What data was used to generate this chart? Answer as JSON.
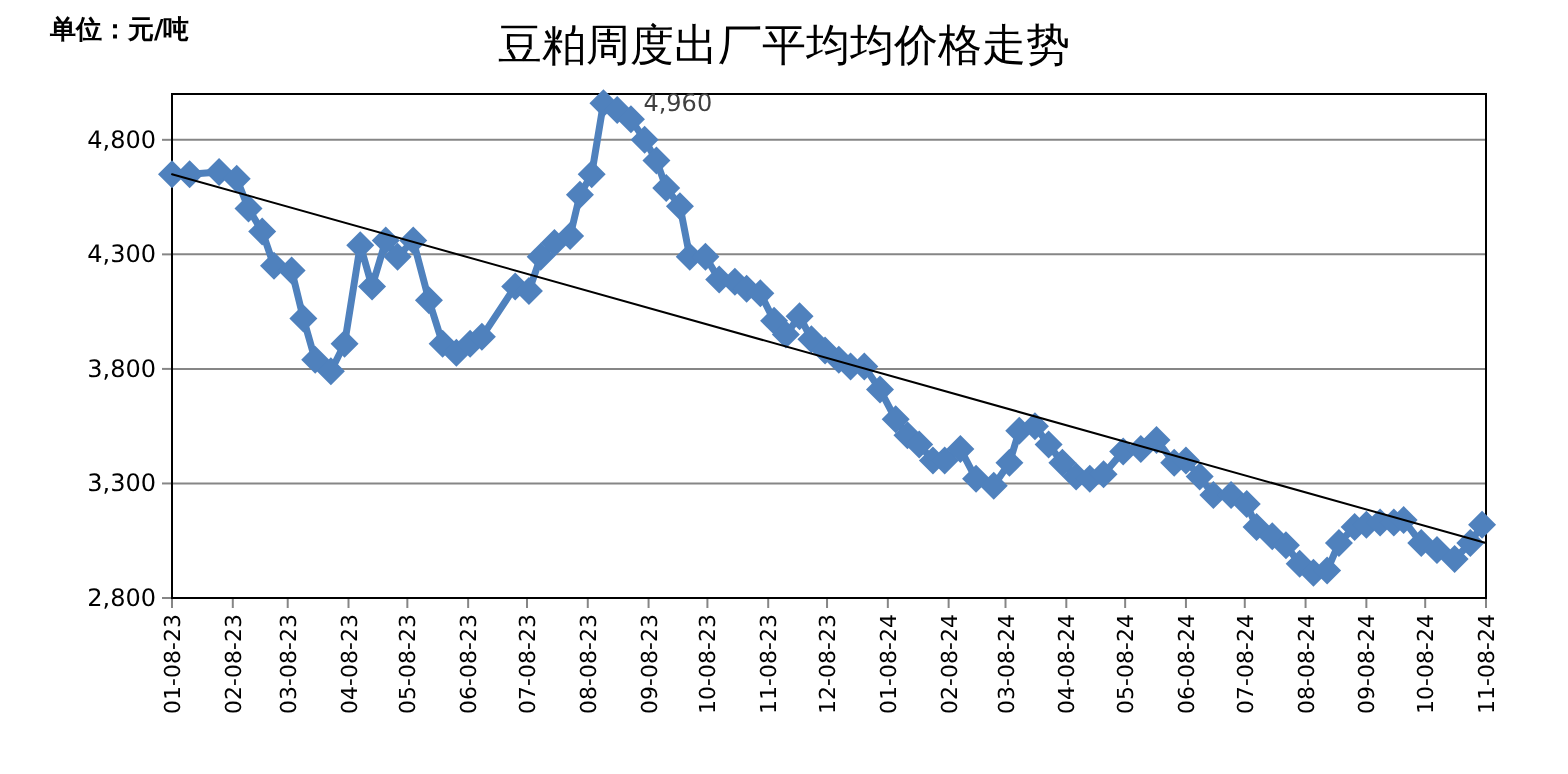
{
  "chart_data": {
    "type": "line",
    "title": "豆粕周度出厂平均均价格走势",
    "annotations": [
      "单位：元/吨",
      {
        "text": "4,960",
        "x": "2023-08-16",
        "y": 4960
      }
    ],
    "x": [
      "2023-01-08",
      "2023-01-17",
      "2023-02-01",
      "2023-02-10",
      "2023-02-16",
      "2023-02-23",
      "2023-03-01",
      "2023-03-10",
      "2023-03-16",
      "2023-03-22",
      "2023-03-30",
      "2023-04-06",
      "2023-04-14",
      "2023-04-20",
      "2023-04-27",
      "2023-05-03",
      "2023-05-11",
      "2023-05-19",
      "2023-05-26",
      "2023-06-02",
      "2023-06-09",
      "2023-06-15",
      "2023-07-02",
      "2023-07-09",
      "2023-07-15",
      "2023-07-22",
      "2023-07-30",
      "2023-08-04",
      "2023-08-10",
      "2023-08-16",
      "2023-08-23",
      "2023-08-30",
      "2023-09-06",
      "2023-09-12",
      "2023-09-17",
      "2023-09-24",
      "2023-09-29",
      "2023-10-07",
      "2023-10-14",
      "2023-10-22",
      "2023-10-28",
      "2023-11-04",
      "2023-11-11",
      "2023-11-17",
      "2023-11-24",
      "2023-11-30",
      "2023-12-07",
      "2023-12-14",
      "2023-12-20",
      "2023-12-27",
      "2024-01-04",
      "2024-01-12",
      "2024-01-18",
      "2024-01-24",
      "2024-01-31",
      "2024-02-06",
      "2024-02-14",
      "2024-02-22",
      "2024-03-02",
      "2024-03-10",
      "2024-03-15",
      "2024-03-23",
      "2024-03-30",
      "2024-04-06",
      "2024-04-13",
      "2024-04-20",
      "2024-04-27",
      "2024-05-07",
      "2024-05-16",
      "2024-05-24",
      "2024-06-02",
      "2024-06-08",
      "2024-06-15",
      "2024-06-22",
      "2024-07-01",
      "2024-07-09",
      "2024-07-14",
      "2024-07-22",
      "2024-07-29",
      "2024-08-05",
      "2024-08-12",
      "2024-08-19",
      "2024-08-25",
      "2024-09-02",
      "2024-09-08",
      "2024-09-15",
      "2024-09-22",
      "2024-09-27",
      "2024-10-06",
      "2024-10-14",
      "2024-10-23",
      "2024-10-31",
      "2024-11-06"
    ],
    "series": [
      {
        "color": "#4f81bd",
        "marker": "diamond",
        "values": [
          4650,
          4650,
          4660,
          4630,
          4500,
          4400,
          4250,
          4230,
          4020,
          3840,
          3790,
          3910,
          4340,
          4160,
          4360,
          4290,
          4360,
          4100,
          3910,
          3870,
          3910,
          3940,
          4160,
          4140,
          4290,
          4350,
          4380,
          4560,
          4650,
          4960,
          4930,
          4890,
          4800,
          4710,
          4590,
          4510,
          4290,
          4290,
          4190,
          4180,
          4150,
          4130,
          4010,
          3950,
          4030,
          3930,
          3880,
          3840,
          3810,
          3810,
          3710,
          3580,
          3510,
          3470,
          3400,
          3400,
          3450,
          3320,
          3290,
          3390,
          3530,
          3550,
          3470,
          3390,
          3330,
          3320,
          3340,
          3440,
          3450,
          3490,
          3390,
          3400,
          3330,
          3250,
          3250,
          3210,
          3110,
          3070,
          3030,
          2950,
          2910,
          2920,
          3040,
          3110,
          3120,
          3130,
          3130,
          3140,
          3040,
          3010,
          2970,
          3040,
          3120
        ]
      },
      {
        "type": "line",
        "color": "#000000",
        "marker": "none",
        "x": [
          "2023-01-08",
          "2024-11-08"
        ],
        "values": [
          4650,
          3040
        ]
      }
    ],
    "ylim": [
      2800,
      5000
    ],
    "yticks": [
      {
        "value": 2800,
        "label": "2,800"
      },
      {
        "value": 3300,
        "label": "3,300"
      },
      {
        "value": 3800,
        "label": "3,800"
      },
      {
        "value": 4300,
        "label": "4,300"
      },
      {
        "value": 4800,
        "label": "4,800"
      }
    ],
    "xlim": [
      "2023-01-08",
      "2024-11-08"
    ],
    "xticks": [
      {
        "value": "2023-01-08",
        "label": "01-08-23"
      },
      {
        "value": "2023-02-08",
        "label": "02-08-23"
      },
      {
        "value": "2023-03-08",
        "label": "03-08-23"
      },
      {
        "value": "2023-04-08",
        "label": "04-08-23"
      },
      {
        "value": "2023-05-08",
        "label": "05-08-23"
      },
      {
        "value": "2023-06-08",
        "label": "06-08-23"
      },
      {
        "value": "2023-07-08",
        "label": "07-08-23"
      },
      {
        "value": "2023-08-08",
        "label": "08-08-23"
      },
      {
        "value": "2023-09-08",
        "label": "09-08-23"
      },
      {
        "value": "2023-10-08",
        "label": "10-08-23"
      },
      {
        "value": "2023-11-08",
        "label": "11-08-23"
      },
      {
        "value": "2023-12-08",
        "label": "12-08-23"
      },
      {
        "value": "2024-01-08",
        "label": "01-08-24"
      },
      {
        "value": "2024-02-08",
        "label": "02-08-24"
      },
      {
        "value": "2024-03-08",
        "label": "03-08-24"
      },
      {
        "value": "2024-04-08",
        "label": "04-08-24"
      },
      {
        "value": "2024-05-08",
        "label": "05-08-24"
      },
      {
        "value": "2024-06-08",
        "label": "06-08-24"
      },
      {
        "value": "2024-07-08",
        "label": "07-08-24"
      },
      {
        "value": "2024-08-08",
        "label": "08-08-24"
      },
      {
        "value": "2024-09-08",
        "label": "09-08-24"
      },
      {
        "value": "2024-10-08",
        "label": "10-08-24"
      },
      {
        "value": "2024-11-08",
        "label": "11-08-24"
      }
    ],
    "grid": "y",
    "line_style": "solid"
  }
}
